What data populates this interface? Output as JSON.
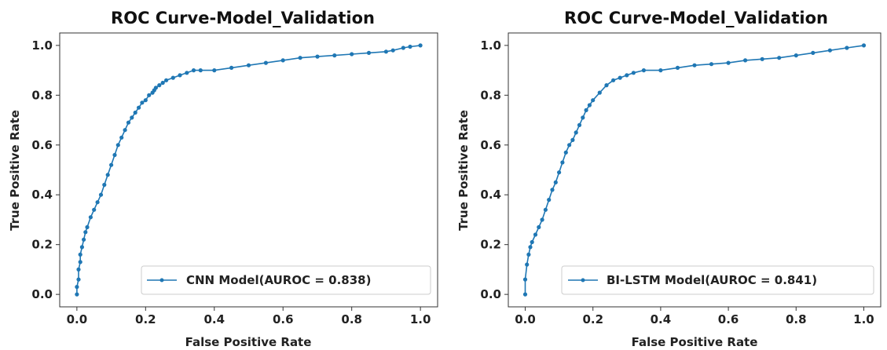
{
  "chart_data": [
    {
      "type": "line",
      "title": "ROC Curve-Model_Validation",
      "xlabel": "False Positive Rate",
      "ylabel": "True Positive Rate",
      "xlim": [
        -0.05,
        1.05
      ],
      "ylim": [
        -0.05,
        1.05
      ],
      "xticks": [
        "0.0",
        "0.2",
        "0.4",
        "0.6",
        "0.8",
        "1.0"
      ],
      "yticks": [
        "0.0",
        "0.2",
        "0.4",
        "0.6",
        "0.8",
        "1.0"
      ],
      "grid": false,
      "legend_position": "lower-right",
      "color": "#1f77b4",
      "series": [
        {
          "name": "CNN Model(AUROC =  0.838)",
          "x": [
            0.0,
            0.0,
            0.005,
            0.005,
            0.01,
            0.01,
            0.015,
            0.02,
            0.025,
            0.03,
            0.04,
            0.05,
            0.06,
            0.07,
            0.08,
            0.09,
            0.1,
            0.11,
            0.12,
            0.13,
            0.14,
            0.15,
            0.16,
            0.17,
            0.18,
            0.19,
            0.2,
            0.21,
            0.22,
            0.225,
            0.23,
            0.24,
            0.25,
            0.26,
            0.28,
            0.3,
            0.32,
            0.34,
            0.36,
            0.4,
            0.45,
            0.5,
            0.55,
            0.6,
            0.65,
            0.7,
            0.75,
            0.8,
            0.85,
            0.9,
            0.92,
            0.95,
            0.97,
            1.0
          ],
          "y": [
            0.0,
            0.03,
            0.06,
            0.1,
            0.13,
            0.16,
            0.19,
            0.22,
            0.25,
            0.27,
            0.31,
            0.34,
            0.37,
            0.4,
            0.44,
            0.48,
            0.52,
            0.56,
            0.6,
            0.63,
            0.66,
            0.69,
            0.71,
            0.73,
            0.75,
            0.77,
            0.78,
            0.8,
            0.81,
            0.82,
            0.83,
            0.84,
            0.85,
            0.86,
            0.87,
            0.88,
            0.89,
            0.9,
            0.9,
            0.9,
            0.91,
            0.92,
            0.93,
            0.94,
            0.95,
            0.955,
            0.96,
            0.965,
            0.97,
            0.975,
            0.98,
            0.99,
            0.995,
            1.0
          ]
        }
      ]
    },
    {
      "type": "line",
      "title": "ROC Curve-Model_Validation",
      "xlabel": "False Positive Rate",
      "ylabel": "True Positive Rate",
      "xlim": [
        -0.05,
        1.05
      ],
      "ylim": [
        -0.05,
        1.05
      ],
      "xticks": [
        "0.0",
        "0.2",
        "0.4",
        "0.6",
        "0.8",
        "1.0"
      ],
      "yticks": [
        "0.0",
        "0.2",
        "0.4",
        "0.6",
        "0.8",
        "1.0"
      ],
      "grid": false,
      "legend_position": "lower-right",
      "color": "#1f77b4",
      "series": [
        {
          "name": "BI-LSTM Model(AUROC =  0.841)",
          "x": [
            0.0,
            0.0,
            0.005,
            0.01,
            0.015,
            0.02,
            0.03,
            0.04,
            0.05,
            0.06,
            0.07,
            0.08,
            0.09,
            0.1,
            0.11,
            0.12,
            0.13,
            0.14,
            0.15,
            0.16,
            0.17,
            0.18,
            0.19,
            0.2,
            0.22,
            0.24,
            0.26,
            0.28,
            0.3,
            0.32,
            0.35,
            0.4,
            0.45,
            0.5,
            0.55,
            0.6,
            0.65,
            0.7,
            0.75,
            0.8,
            0.85,
            0.9,
            0.95,
            1.0
          ],
          "y": [
            0.0,
            0.06,
            0.12,
            0.16,
            0.19,
            0.21,
            0.24,
            0.27,
            0.3,
            0.34,
            0.38,
            0.42,
            0.45,
            0.49,
            0.53,
            0.57,
            0.6,
            0.62,
            0.65,
            0.68,
            0.71,
            0.74,
            0.76,
            0.78,
            0.81,
            0.84,
            0.86,
            0.87,
            0.88,
            0.89,
            0.9,
            0.9,
            0.91,
            0.92,
            0.925,
            0.93,
            0.94,
            0.945,
            0.95,
            0.96,
            0.97,
            0.98,
            0.99,
            1.0
          ]
        }
      ]
    }
  ]
}
